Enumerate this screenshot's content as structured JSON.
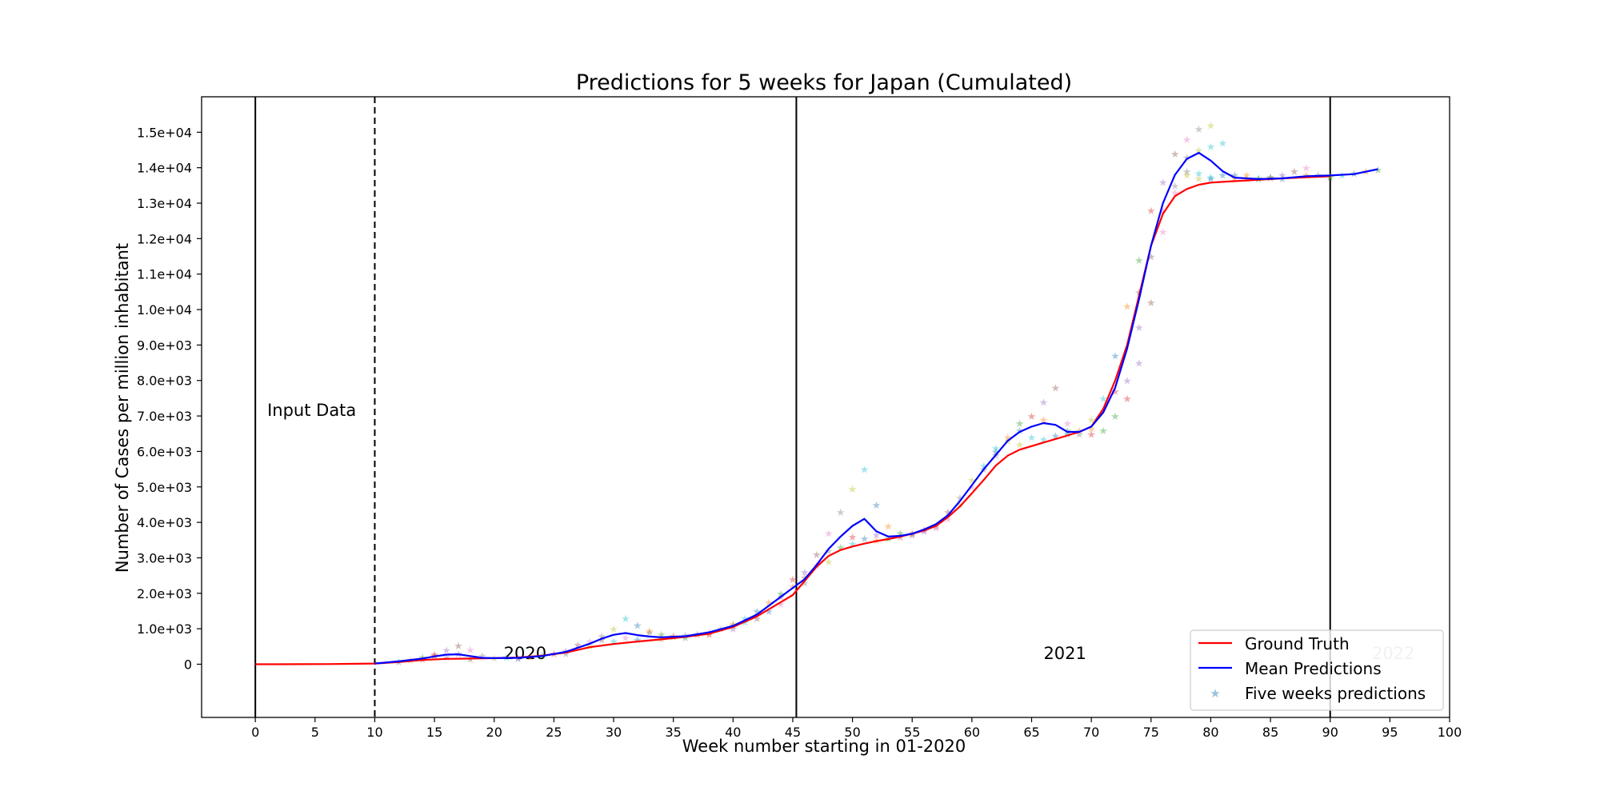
{
  "chart_data": {
    "type": "line",
    "title": "Predictions for 5 weeks for Japan (Cumulated)",
    "xlabel": "Week number starting in 01-2020",
    "ylabel": "Number of Cases per million inhabitant",
    "xlim": [
      -4.5,
      100
    ],
    "ylim": [
      -1500,
      16000
    ],
    "xticks": [
      0,
      5,
      10,
      15,
      20,
      25,
      30,
      35,
      40,
      45,
      50,
      55,
      60,
      65,
      70,
      75,
      80,
      85,
      90,
      95,
      100
    ],
    "xtick_labels": [
      "0",
      "5",
      "10",
      "15",
      "20",
      "25",
      "30",
      "35",
      "40",
      "45",
      "50",
      "55",
      "60",
      "65",
      "70",
      "75",
      "80",
      "85",
      "90",
      "95",
      "100"
    ],
    "yticks": [
      0,
      1000,
      2000,
      3000,
      4000,
      5000,
      6000,
      7000,
      8000,
      9000,
      10000,
      11000,
      12000,
      13000,
      14000,
      15000
    ],
    "ytick_labels": [
      "0",
      "1.0e+03",
      "2.0e+03",
      "3.0e+03",
      "4.0e+03",
      "5.0e+03",
      "6.0e+03",
      "7.0e+03",
      "8.0e+03",
      "9.0e+03",
      "1.0e+04",
      "1.1e+04",
      "1.2e+04",
      "1.3e+04",
      "1.4e+04",
      "1.5e+04"
    ],
    "grid": false,
    "legend": {
      "position": "bottom-right",
      "entries": [
        "Ground Truth",
        "Mean Predictions",
        "Five weeks predictions"
      ]
    },
    "colors": {
      "ground_truth": "#ff0000",
      "mean_predictions": "#0000ff",
      "marker_palette": [
        "#1f77b4",
        "#ff7f0e",
        "#2ca02c",
        "#d62728",
        "#9467bd",
        "#8c564b",
        "#e377c2",
        "#7f7f7f",
        "#bcbd22",
        "#17becf"
      ]
    },
    "vertical_lines": [
      {
        "x": 0,
        "style": "solid"
      },
      {
        "x": 10,
        "style": "dashed"
      },
      {
        "x": 45.3,
        "style": "solid"
      },
      {
        "x": 90,
        "style": "solid"
      }
    ],
    "annotations": [
      {
        "text": "Input Data",
        "x": 1,
        "y": 7000,
        "color": "#000000"
      },
      {
        "text": "2020",
        "x": 20.8,
        "y": 150,
        "color": "#000000"
      },
      {
        "text": "2021",
        "x": 66,
        "y": 150,
        "color": "#000000"
      },
      {
        "text": "2022",
        "x": 93.5,
        "y": 150,
        "color": "#bbbbbb"
      }
    ],
    "series": [
      {
        "name": "Ground Truth",
        "x": [
          0,
          2,
          4,
          6,
          8,
          10,
          12,
          14,
          16,
          18,
          20,
          22,
          24,
          26,
          28,
          30,
          32,
          34,
          36,
          38,
          40,
          42,
          44,
          45,
          46,
          47,
          48,
          49,
          50,
          51,
          52,
          53,
          54,
          55,
          56,
          57,
          58,
          59,
          60,
          61,
          62,
          63,
          64,
          65,
          66,
          67,
          68,
          69,
          70,
          71,
          72,
          73,
          74,
          75,
          76,
          77,
          78,
          79,
          80,
          82,
          84,
          86,
          88,
          90
        ],
        "values": [
          0,
          0,
          2,
          5,
          10,
          20,
          60,
          120,
          150,
          160,
          170,
          190,
          240,
          330,
          480,
          570,
          640,
          700,
          770,
          860,
          1050,
          1350,
          1750,
          1950,
          2350,
          2750,
          3050,
          3220,
          3320,
          3400,
          3470,
          3530,
          3600,
          3680,
          3770,
          3900,
          4150,
          4450,
          4820,
          5200,
          5600,
          5880,
          6050,
          6150,
          6250,
          6350,
          6450,
          6550,
          6700,
          7200,
          8000,
          9000,
          10400,
          11800,
          12700,
          13200,
          13400,
          13520,
          13580,
          13620,
          13660,
          13700,
          13730,
          13760
        ]
      },
      {
        "name": "Mean Predictions",
        "x": [
          10,
          12,
          14,
          15,
          16,
          17,
          18,
          19,
          20,
          22,
          24,
          26,
          28,
          29,
          30,
          31,
          32,
          33,
          34,
          36,
          38,
          40,
          42,
          44,
          45,
          46,
          47,
          48,
          49,
          50,
          51,
          52,
          53,
          54,
          55,
          56,
          57,
          58,
          59,
          60,
          61,
          62,
          63,
          64,
          65,
          66,
          67,
          68,
          69,
          70,
          71,
          72,
          73,
          74,
          75,
          76,
          77,
          78,
          79,
          80,
          81,
          82,
          84,
          86,
          88,
          90,
          92,
          94
        ],
        "values": [
          20,
          80,
          160,
          220,
          270,
          280,
          230,
          180,
          170,
          180,
          230,
          350,
          580,
          720,
          830,
          880,
          820,
          780,
          760,
          790,
          900,
          1080,
          1400,
          1900,
          2150,
          2400,
          2800,
          3250,
          3600,
          3900,
          4100,
          3750,
          3600,
          3620,
          3680,
          3800,
          3950,
          4200,
          4600,
          5050,
          5500,
          5900,
          6300,
          6550,
          6700,
          6800,
          6750,
          6550,
          6550,
          6700,
          7100,
          7800,
          8900,
          10300,
          11800,
          13000,
          13800,
          14250,
          14420,
          14200,
          13900,
          13720,
          13680,
          13700,
          13760,
          13780,
          13820,
          13960
        ]
      }
    ],
    "scatter_points": [
      {
        "x": 12,
        "y": 80
      },
      {
        "x": 13,
        "y": 120
      },
      {
        "x": 14,
        "y": 200
      },
      {
        "x": 15,
        "y": 280
      },
      {
        "x": 16,
        "y": 400
      },
      {
        "x": 17,
        "y": 530
      },
      {
        "x": 18,
        "y": 420
      },
      {
        "x": 19,
        "y": 250
      },
      {
        "x": 20,
        "y": 180
      },
      {
        "x": 21,
        "y": 200
      },
      {
        "x": 22,
        "y": 170
      },
      {
        "x": 23,
        "y": 210
      },
      {
        "x": 24,
        "y": 250
      },
      {
        "x": 25,
        "y": 300
      },
      {
        "x": 26,
        "y": 380
      },
      {
        "x": 27,
        "y": 550
      },
      {
        "x": 28,
        "y": 650
      },
      {
        "x": 29,
        "y": 800
      },
      {
        "x": 30,
        "y": 1000
      },
      {
        "x": 31,
        "y": 1300
      },
      {
        "x": 32,
        "y": 1100
      },
      {
        "x": 33,
        "y": 950
      },
      {
        "x": 34,
        "y": 850
      },
      {
        "x": 35,
        "y": 800
      },
      {
        "x": 36,
        "y": 820
      },
      {
        "x": 37,
        "y": 850
      },
      {
        "x": 38,
        "y": 900
      },
      {
        "x": 39,
        "y": 1000
      },
      {
        "x": 40,
        "y": 1150
      },
      {
        "x": 41,
        "y": 1300
      },
      {
        "x": 42,
        "y": 1500
      },
      {
        "x": 43,
        "y": 1750
      },
      {
        "x": 44,
        "y": 2000
      },
      {
        "x": 45,
        "y": 2400
      },
      {
        "x": 46,
        "y": 2600
      },
      {
        "x": 47,
        "y": 3100
      },
      {
        "x": 48,
        "y": 3700
      },
      {
        "x": 49,
        "y": 4300
      },
      {
        "x": 50,
        "y": 4950
      },
      {
        "x": 51,
        "y": 5500
      },
      {
        "x": 52,
        "y": 4500
      },
      {
        "x": 53,
        "y": 3900
      },
      {
        "x": 54,
        "y": 3700
      },
      {
        "x": 55,
        "y": 3700
      },
      {
        "x": 56,
        "y": 3800
      },
      {
        "x": 57,
        "y": 3900
      },
      {
        "x": 58,
        "y": 4100
      },
      {
        "x": 59,
        "y": 4700
      },
      {
        "x": 60,
        "y": 5200
      },
      {
        "x": 61,
        "y": 5600
      },
      {
        "x": 62,
        "y": 6000
      },
      {
        "x": 63,
        "y": 6400
      },
      {
        "x": 64,
        "y": 6800
      },
      {
        "x": 65,
        "y": 7000
      },
      {
        "x": 66,
        "y": 7400
      },
      {
        "x": 67,
        "y": 7800
      },
      {
        "x": 68,
        "y": 6800
      },
      {
        "x": 69,
        "y": 6500
      },
      {
        "x": 70,
        "y": 6900
      },
      {
        "x": 71,
        "y": 7500
      },
      {
        "x": 72,
        "y": 8700
      },
      {
        "x": 73,
        "y": 10100
      },
      {
        "x": 74,
        "y": 11400
      },
      {
        "x": 75,
        "y": 12800
      },
      {
        "x": 76,
        "y": 13600
      },
      {
        "x": 77,
        "y": 14400
      },
      {
        "x": 78,
        "y": 14800
      },
      {
        "x": 79,
        "y": 15100
      },
      {
        "x": 80,
        "y": 15200
      },
      {
        "x": 81,
        "y": 14700
      },
      {
        "x": 82,
        "y": 13800
      },
      {
        "x": 83,
        "y": 13700
      },
      {
        "x": 84,
        "y": 13700
      },
      {
        "x": 85,
        "y": 13720
      },
      {
        "x": 86,
        "y": 13800
      },
      {
        "x": 87,
        "y": 13900
      },
      {
        "x": 88,
        "y": 14000
      },
      {
        "x": 89,
        "y": 13800
      },
      {
        "x": 90,
        "y": 13760
      },
      {
        "x": 91,
        "y": 13800
      },
      {
        "x": 92,
        "y": 13850
      },
      {
        "x": 93,
        "y": 13900
      },
      {
        "x": 94,
        "y": 13950
      },
      {
        "x": 14,
        "y": 150
      },
      {
        "x": 16,
        "y": 200
      },
      {
        "x": 18,
        "y": 160
      },
      {
        "x": 22,
        "y": 180
      },
      {
        "x": 26,
        "y": 300
      },
      {
        "x": 28,
        "y": 520
      },
      {
        "x": 30,
        "y": 650
      },
      {
        "x": 32,
        "y": 700
      },
      {
        "x": 34,
        "y": 720
      },
      {
        "x": 36,
        "y": 760
      },
      {
        "x": 38,
        "y": 850
      },
      {
        "x": 40,
        "y": 1000
      },
      {
        "x": 42,
        "y": 1300
      },
      {
        "x": 44,
        "y": 1700
      },
      {
        "x": 46,
        "y": 2300
      },
      {
        "x": 48,
        "y": 2900
      },
      {
        "x": 50,
        "y": 3400
      },
      {
        "x": 51,
        "y": 3550
      },
      {
        "x": 52,
        "y": 3500
      },
      {
        "x": 53,
        "y": 3550
      },
      {
        "x": 54,
        "y": 3600
      },
      {
        "x": 56,
        "y": 3750
      },
      {
        "x": 58,
        "y": 4300
      },
      {
        "x": 60,
        "y": 5000
      },
      {
        "x": 62,
        "y": 5900
      },
      {
        "x": 64,
        "y": 6200
      },
      {
        "x": 66,
        "y": 6350
      },
      {
        "x": 68,
        "y": 6500
      },
      {
        "x": 70,
        "y": 6650
      },
      {
        "x": 72,
        "y": 7000
      },
      {
        "x": 73,
        "y": 7500
      },
      {
        "x": 74,
        "y": 8500
      },
      {
        "x": 75,
        "y": 10200
      },
      {
        "x": 76,
        "y": 12200
      },
      {
        "x": 77,
        "y": 13500
      },
      {
        "x": 78,
        "y": 13800
      },
      {
        "x": 79,
        "y": 13850
      },
      {
        "x": 80,
        "y": 13700
      },
      {
        "x": 82,
        "y": 13720
      },
      {
        "x": 84,
        "y": 13700
      },
      {
        "x": 15,
        "y": 250
      },
      {
        "x": 17,
        "y": 300
      },
      {
        "x": 29,
        "y": 700
      },
      {
        "x": 31,
        "y": 750
      },
      {
        "x": 33,
        "y": 900
      },
      {
        "x": 35,
        "y": 780
      },
      {
        "x": 41,
        "y": 1200
      },
      {
        "x": 43,
        "y": 1500
      },
      {
        "x": 45,
        "y": 2200
      },
      {
        "x": 49,
        "y": 3300
      },
      {
        "x": 50,
        "y": 3600
      },
      {
        "x": 52,
        "y": 3650
      },
      {
        "x": 55,
        "y": 3650
      },
      {
        "x": 57,
        "y": 3850
      },
      {
        "x": 61,
        "y": 5500
      },
      {
        "x": 63,
        "y": 6300
      },
      {
        "x": 65,
        "y": 6400
      },
      {
        "x": 67,
        "y": 6450
      },
      {
        "x": 69,
        "y": 6600
      },
      {
        "x": 71,
        "y": 6600
      },
      {
        "x": 72,
        "y": 7700
      },
      {
        "x": 74,
        "y": 9500
      },
      {
        "x": 75,
        "y": 11500
      },
      {
        "x": 77,
        "y": 13300
      },
      {
        "x": 78,
        "y": 14300
      },
      {
        "x": 79,
        "y": 14500
      },
      {
        "x": 80,
        "y": 14600
      },
      {
        "x": 81,
        "y": 13800
      },
      {
        "x": 83,
        "y": 13800
      },
      {
        "x": 85,
        "y": 13750
      },
      {
        "x": 40,
        "y": 1100
      },
      {
        "x": 44,
        "y": 1900
      },
      {
        "x": 46,
        "y": 2450
      },
      {
        "x": 47,
        "y": 2800
      },
      {
        "x": 48,
        "y": 3200
      },
      {
        "x": 59,
        "y": 4500
      },
      {
        "x": 62,
        "y": 6100
      },
      {
        "x": 64,
        "y": 6600
      },
      {
        "x": 66,
        "y": 6900
      },
      {
        "x": 68,
        "y": 6600
      },
      {
        "x": 70,
        "y": 6500
      },
      {
        "x": 73,
        "y": 8000
      },
      {
        "x": 74,
        "y": 10500
      },
      {
        "x": 76,
        "y": 12800
      },
      {
        "x": 78,
        "y": 13900
      },
      {
        "x": 79,
        "y": 13700
      },
      {
        "x": 80,
        "y": 13750
      },
      {
        "x": 86,
        "y": 13700
      },
      {
        "x": 88,
        "y": 13800
      },
      {
        "x": 90,
        "y": 13750
      }
    ]
  }
}
